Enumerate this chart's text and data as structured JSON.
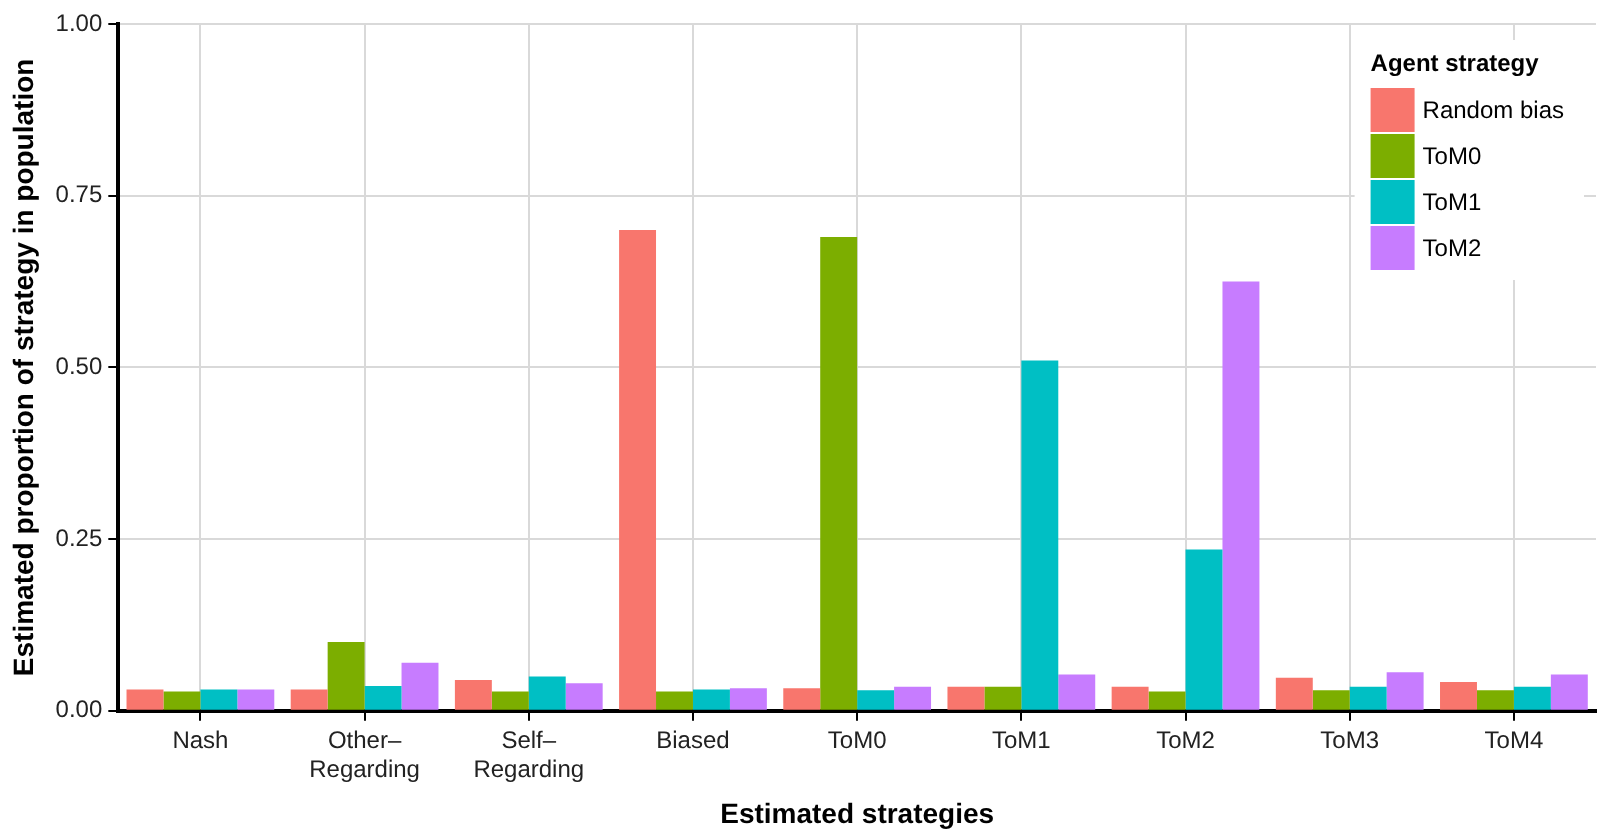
{
  "chart_data": {
    "type": "bar",
    "xlabel": "Estimated strategies",
    "ylabel": "Estimated proportion of strategy in population",
    "legend_title": "Agent strategy",
    "categories": [
      "Nash",
      "Other–\nRegarding",
      "Self–\nRegarding",
      "Biased",
      "ToM0",
      "ToM1",
      "ToM2",
      "ToM3",
      "ToM4"
    ],
    "series": [
      {
        "name": "Random bias",
        "color": "#f8766d",
        "values": [
          0.031,
          0.031,
          0.045,
          0.7,
          0.033,
          0.035,
          0.035,
          0.048,
          0.042
        ]
      },
      {
        "name": "ToM0",
        "color": "#7cae00",
        "values": [
          0.028,
          0.1,
          0.028,
          0.028,
          0.69,
          0.035,
          0.028,
          0.03,
          0.03
        ]
      },
      {
        "name": "ToM1",
        "color": "#00bfc4",
        "values": [
          0.031,
          0.036,
          0.05,
          0.031,
          0.03,
          0.51,
          0.235,
          0.035,
          0.035
        ]
      },
      {
        "name": "ToM2",
        "color": "#c77cff",
        "values": [
          0.031,
          0.07,
          0.04,
          0.033,
          0.035,
          0.053,
          0.625,
          0.056,
          0.053
        ]
      }
    ],
    "ylim": [
      0,
      1
    ],
    "yticks": [
      {
        "value": 0,
        "label": "0.00"
      },
      {
        "value": 0.25,
        "label": "0.25"
      },
      {
        "value": 0.5,
        "label": "0.50"
      },
      {
        "value": 0.75,
        "label": "0.75"
      },
      {
        "value": 1,
        "label": "1.00"
      }
    ],
    "grid": true,
    "legend": "top right"
  }
}
